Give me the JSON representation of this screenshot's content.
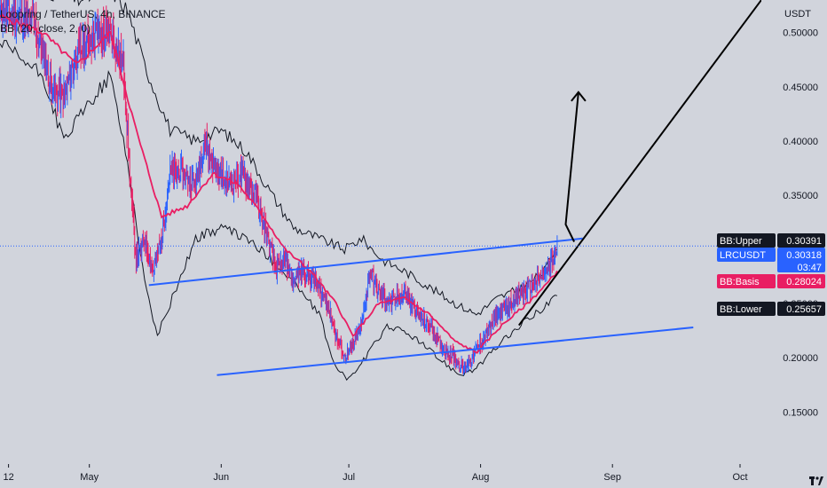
{
  "chart_data": {
    "type": "line",
    "title": "Loopring / TetherUS, 4h, BINANCE",
    "indicator": "BB (20, close, 2, 0)",
    "y_axis": {
      "unit": "USDT",
      "ylim": [
        0.102,
        0.53
      ],
      "ticks": [
        "0.50000",
        "0.45000",
        "0.40000",
        "0.35000",
        "0.25000",
        "0.20000",
        "0.15000"
      ],
      "tick_values": [
        0.5,
        0.45,
        0.4,
        0.35,
        0.25,
        0.2,
        0.15
      ]
    },
    "x_axis": {
      "ticks": [
        "12",
        "May",
        "Jun",
        "Jul",
        "Aug",
        "Sep",
        "Oct"
      ],
      "tick_dates": [
        "2022-04-12",
        "2022-05-01",
        "2022-06-01",
        "2022-07-01",
        "2022-08-01",
        "2022-09-01",
        "2022-10-01"
      ],
      "range": [
        "2022-04-10",
        "2022-10-06"
      ]
    },
    "grid": false,
    "legend_position": "top-left",
    "series": [
      {
        "name": "LRCUSDT",
        "type": "price",
        "points": [
          [
            "2022-04-10",
            0.52
          ],
          [
            "2022-04-18",
            0.51
          ],
          [
            "2022-04-22",
            0.45
          ],
          [
            "2022-04-25",
            0.44
          ],
          [
            "2022-04-28",
            0.48
          ],
          [
            "2022-05-02",
            0.5
          ],
          [
            "2022-05-06",
            0.5
          ],
          [
            "2022-05-09",
            0.47
          ],
          [
            "2022-05-11",
            0.34
          ],
          [
            "2022-05-12",
            0.29
          ],
          [
            "2022-05-14",
            0.31
          ],
          [
            "2022-05-16",
            0.28
          ],
          [
            "2022-05-18",
            0.31
          ],
          [
            "2022-05-20",
            0.37
          ],
          [
            "2022-05-23",
            0.37
          ],
          [
            "2022-05-26",
            0.36
          ],
          [
            "2022-05-28",
            0.4
          ],
          [
            "2022-05-31",
            0.37
          ],
          [
            "2022-06-03",
            0.36
          ],
          [
            "2022-06-06",
            0.37
          ],
          [
            "2022-06-09",
            0.35
          ],
          [
            "2022-06-12",
            0.31
          ],
          [
            "2022-06-14",
            0.28
          ],
          [
            "2022-06-16",
            0.29
          ],
          [
            "2022-06-18",
            0.27
          ],
          [
            "2022-06-20",
            0.28
          ],
          [
            "2022-06-23",
            0.27
          ],
          [
            "2022-06-26",
            0.25
          ],
          [
            "2022-06-28",
            0.22
          ],
          [
            "2022-06-30",
            0.2
          ],
          [
            "2022-07-02",
            0.21
          ],
          [
            "2022-07-04",
            0.23
          ],
          [
            "2022-07-06",
            0.28
          ],
          [
            "2022-07-08",
            0.26
          ],
          [
            "2022-07-11",
            0.25
          ],
          [
            "2022-07-14",
            0.26
          ],
          [
            "2022-07-17",
            0.24
          ],
          [
            "2022-07-20",
            0.23
          ],
          [
            "2022-07-23",
            0.21
          ],
          [
            "2022-07-26",
            0.2
          ],
          [
            "2022-07-28",
            0.19
          ],
          [
            "2022-07-30",
            0.2
          ],
          [
            "2022-08-02",
            0.22
          ],
          [
            "2022-08-05",
            0.24
          ],
          [
            "2022-08-08",
            0.25
          ],
          [
            "2022-08-11",
            0.26
          ],
          [
            "2022-08-14",
            0.27
          ],
          [
            "2022-08-17",
            0.28
          ],
          [
            "2022-08-19",
            0.3
          ]
        ]
      },
      {
        "name": "BB:Basis",
        "type": "basis",
        "points": [
          [
            "2022-04-10",
            0.515
          ],
          [
            "2022-04-20",
            0.5
          ],
          [
            "2022-04-28",
            0.47
          ],
          [
            "2022-05-06",
            0.5
          ],
          [
            "2022-05-12",
            0.41
          ],
          [
            "2022-05-18",
            0.33
          ],
          [
            "2022-05-24",
            0.34
          ],
          [
            "2022-05-30",
            0.37
          ],
          [
            "2022-06-05",
            0.36
          ],
          [
            "2022-06-11",
            0.33
          ],
          [
            "2022-06-16",
            0.3
          ],
          [
            "2022-06-22",
            0.28
          ],
          [
            "2022-06-28",
            0.25
          ],
          [
            "2022-07-02",
            0.22
          ],
          [
            "2022-07-08",
            0.25
          ],
          [
            "2022-07-14",
            0.255
          ],
          [
            "2022-07-20",
            0.24
          ],
          [
            "2022-07-26",
            0.215
          ],
          [
            "2022-07-31",
            0.205
          ],
          [
            "2022-08-06",
            0.23
          ],
          [
            "2022-08-12",
            0.25
          ],
          [
            "2022-08-17",
            0.27
          ],
          [
            "2022-08-19",
            0.28
          ]
        ]
      },
      {
        "name": "BB:Upper",
        "type": "upper",
        "points": [
          [
            "2022-04-10",
            0.54
          ],
          [
            "2022-04-20",
            0.54
          ],
          [
            "2022-04-28",
            0.53
          ],
          [
            "2022-05-06",
            0.54
          ],
          [
            "2022-05-10",
            0.52
          ],
          [
            "2022-05-14",
            0.47
          ],
          [
            "2022-05-20",
            0.41
          ],
          [
            "2022-05-26",
            0.4
          ],
          [
            "2022-06-01",
            0.41
          ],
          [
            "2022-06-07",
            0.39
          ],
          [
            "2022-06-13",
            0.35
          ],
          [
            "2022-06-18",
            0.32
          ],
          [
            "2022-06-24",
            0.31
          ],
          [
            "2022-06-30",
            0.3
          ],
          [
            "2022-07-04",
            0.31
          ],
          [
            "2022-07-09",
            0.29
          ],
          [
            "2022-07-14",
            0.28
          ],
          [
            "2022-07-20",
            0.265
          ],
          [
            "2022-07-26",
            0.25
          ],
          [
            "2022-07-31",
            0.24
          ],
          [
            "2022-08-05",
            0.255
          ],
          [
            "2022-08-11",
            0.265
          ],
          [
            "2022-08-16",
            0.28
          ],
          [
            "2022-08-19",
            0.304
          ]
        ]
      },
      {
        "name": "BB:Lower",
        "type": "lower",
        "points": [
          [
            "2022-04-10",
            0.49
          ],
          [
            "2022-04-20",
            0.46
          ],
          [
            "2022-04-25",
            0.4
          ],
          [
            "2022-04-30",
            0.43
          ],
          [
            "2022-05-06",
            0.46
          ],
          [
            "2022-05-10",
            0.38
          ],
          [
            "2022-05-14",
            0.27
          ],
          [
            "2022-05-17",
            0.22
          ],
          [
            "2022-05-21",
            0.26
          ],
          [
            "2022-05-26",
            0.31
          ],
          [
            "2022-06-01",
            0.32
          ],
          [
            "2022-06-07",
            0.31
          ],
          [
            "2022-06-13",
            0.29
          ],
          [
            "2022-06-18",
            0.27
          ],
          [
            "2022-06-24",
            0.24
          ],
          [
            "2022-06-28",
            0.19
          ],
          [
            "2022-07-01",
            0.18
          ],
          [
            "2022-07-05",
            0.2
          ],
          [
            "2022-07-10",
            0.23
          ],
          [
            "2022-07-16",
            0.22
          ],
          [
            "2022-07-22",
            0.2
          ],
          [
            "2022-07-27",
            0.185
          ],
          [
            "2022-07-31",
            0.19
          ],
          [
            "2022-08-06",
            0.215
          ],
          [
            "2022-08-12",
            0.235
          ],
          [
            "2022-08-19",
            0.257
          ]
        ]
      }
    ],
    "drawings": [
      {
        "kind": "channel-line",
        "color": "#2962ff",
        "points": [
          [
            "2022-05-15",
            0.267
          ],
          [
            "2022-08-25",
            0.31
          ]
        ]
      },
      {
        "kind": "channel-line",
        "color": "#2962ff",
        "points": [
          [
            "2022-05-31",
            0.184
          ],
          [
            "2022-09-20",
            0.228
          ]
        ]
      },
      {
        "kind": "trend-line",
        "color": "#000000",
        "points": [
          [
            "2022-08-10",
            0.23
          ],
          [
            "2022-10-06",
            0.53
          ]
        ]
      },
      {
        "kind": "arrow",
        "color": "#000000",
        "points": [
          [
            "2022-08-23",
            0.307
          ],
          [
            "2022-08-21",
            0.323
          ],
          [
            "2022-08-24",
            0.445
          ]
        ]
      }
    ],
    "last_price_line": 0.30318,
    "labels": [
      {
        "name": "BB:Upper",
        "value": "0.30391",
        "color": "#131722",
        "text_color": "#ffffff"
      },
      {
        "name": "LRCUSDT",
        "value": "0.30318",
        "countdown": "03:47",
        "color": "#2962ff",
        "text_color": "#ffffff"
      },
      {
        "name": "BB:Basis",
        "value": "0.28024",
        "color": "#e91e63",
        "text_color": "#ffffff"
      },
      {
        "name": "BB:Lower",
        "value": "0.25657",
        "color": "#131722",
        "text_color": "#ffffff"
      }
    ]
  },
  "colors": {
    "background": "#d1d4dc",
    "price_up": "#2962ff",
    "price_down": "#e91e63",
    "basis": "#e91e63",
    "bands": "#131722",
    "channel": "#2962ff",
    "trend": "#000000"
  },
  "icons": {
    "corner": "tradingview-logo-icon"
  }
}
